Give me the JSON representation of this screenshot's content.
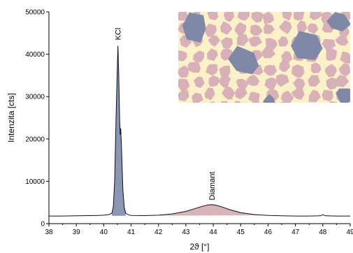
{
  "chart_data": {
    "type": "line",
    "title": "",
    "xlabel": "2ϑ [°]",
    "ylabel": "Intenzita [cts]",
    "xlim": [
      38,
      49
    ],
    "ylim": [
      0,
      50000
    ],
    "xticks": [
      38,
      39,
      40,
      41,
      42,
      43,
      44,
      45,
      46,
      47,
      48,
      49
    ],
    "yticks": [
      0,
      10000,
      20000,
      30000,
      40000,
      50000
    ],
    "grid": false,
    "legend": "none",
    "annotations": [
      {
        "text": "KCl",
        "x": 40.52,
        "y": 43000
      },
      {
        "text": "Diamant",
        "x": 43.95,
        "y": 5200
      }
    ],
    "series": [
      {
        "x": [
          38.0,
          38.5,
          39.0,
          39.5,
          39.8,
          40.0,
          40.2,
          40.3,
          40.35,
          40.4,
          40.45,
          40.5,
          40.52,
          40.55,
          40.58,
          40.6,
          40.62,
          40.65,
          40.7,
          40.75,
          40.8,
          40.9,
          41.0,
          41.5,
          42.0,
          42.5,
          43.0,
          43.3,
          43.6,
          43.8,
          43.95,
          44.1,
          44.3,
          44.6,
          45.0,
          45.5,
          46.0,
          46.5,
          47.0,
          47.5,
          47.9,
          48.0,
          48.1,
          48.5,
          49.0
        ],
        "y": [
          1800,
          1800,
          1850,
          1900,
          1950,
          2000,
          2150,
          2500,
          4000,
          10000,
          25000,
          38000,
          42000,
          35000,
          25000,
          21000,
          22500,
          18000,
          8000,
          3800,
          2500,
          2100,
          1950,
          1900,
          2000,
          2300,
          2900,
          3500,
          4100,
          4400,
          4500,
          4350,
          4000,
          3300,
          2600,
          2150,
          1950,
          1850,
          1800,
          1800,
          1850,
          2100,
          1850,
          1800,
          1800
        ]
      }
    ],
    "colors": {
      "line": "#111111",
      "kcl_fill": "#8a96b4",
      "diamant_fill": "#d9b3ba"
    },
    "inset": {
      "background": "#fbf1c8",
      "grain_color_pink": "#d8b0b8",
      "grain_color_blue": "#8088a8"
    }
  }
}
